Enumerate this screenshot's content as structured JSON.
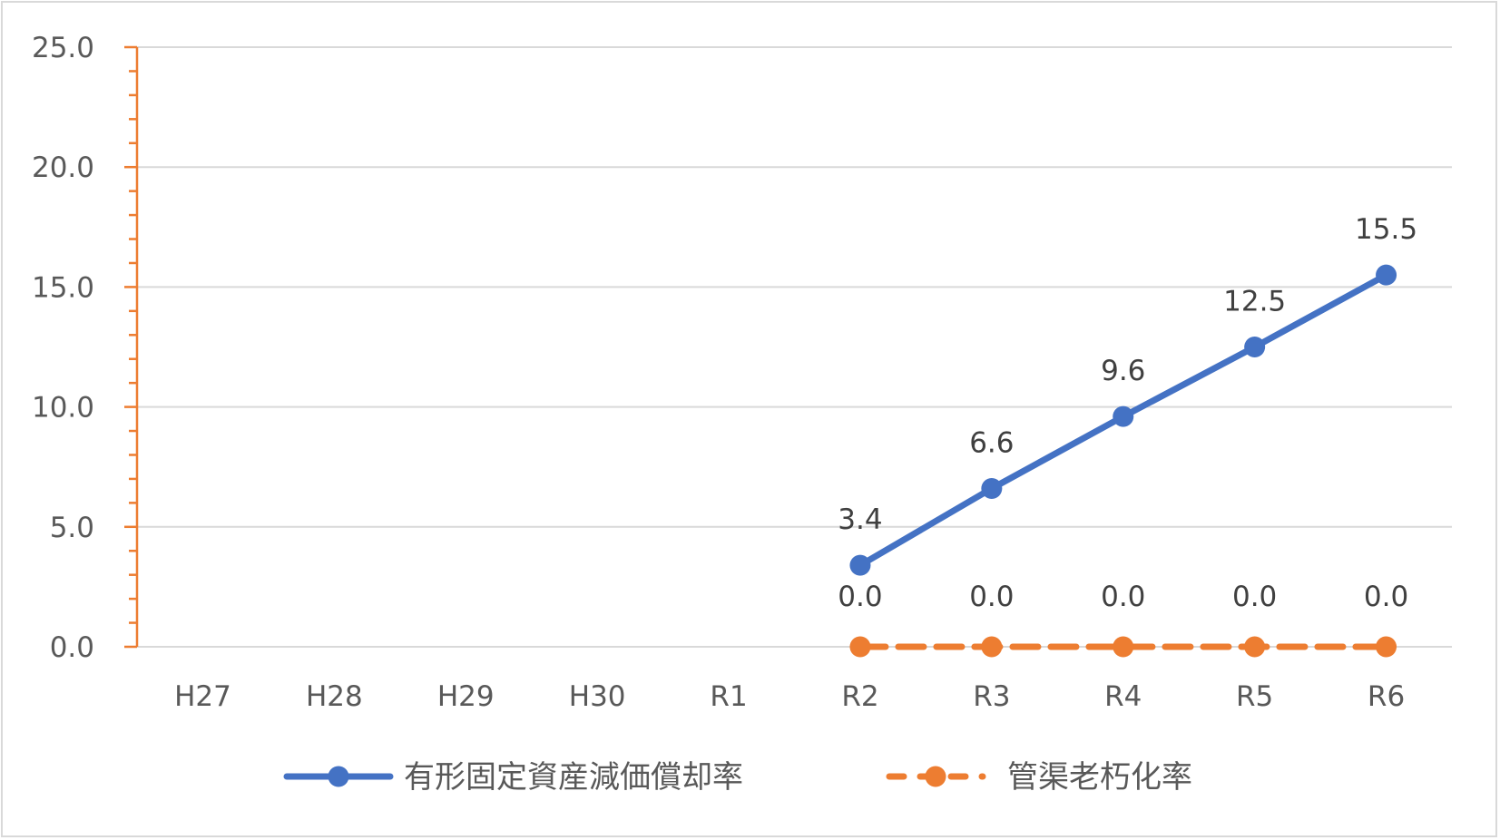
{
  "chart_data": {
    "type": "line",
    "title": "",
    "xlabel": "",
    "ylabel": "",
    "ylim": [
      0,
      25
    ],
    "yticks": [
      "0.0",
      "5.0",
      "10.0",
      "15.0",
      "20.0",
      "25.0"
    ],
    "grid": true,
    "legend_position": "bottom",
    "categories": [
      "H27",
      "H28",
      "H29",
      "H30",
      "R1",
      "R2",
      "R3",
      "R4",
      "R5",
      "R6"
    ],
    "series": [
      {
        "name": "有形固定資産減価償却率",
        "color": "#4472c4",
        "line_style": "solid",
        "values": [
          null,
          null,
          null,
          null,
          null,
          3.4,
          6.6,
          9.6,
          12.5,
          15.5
        ],
        "labels": [
          "",
          "",
          "",
          "",
          "",
          "3.4",
          "6.6",
          "9.6",
          "12.5",
          "15.5"
        ]
      },
      {
        "name": "管渠老朽化率",
        "color": "#ed7d31",
        "line_style": "dashed",
        "values": [
          null,
          null,
          null,
          null,
          null,
          0.0,
          0.0,
          0.0,
          0.0,
          0.0
        ],
        "labels": [
          "",
          "",
          "",
          "",
          "",
          "0.0",
          "0.0",
          "0.0",
          "0.0",
          "0.0"
        ]
      }
    ]
  },
  "axis_color": "#ed7d31",
  "grid_color": "#d9d9d9"
}
